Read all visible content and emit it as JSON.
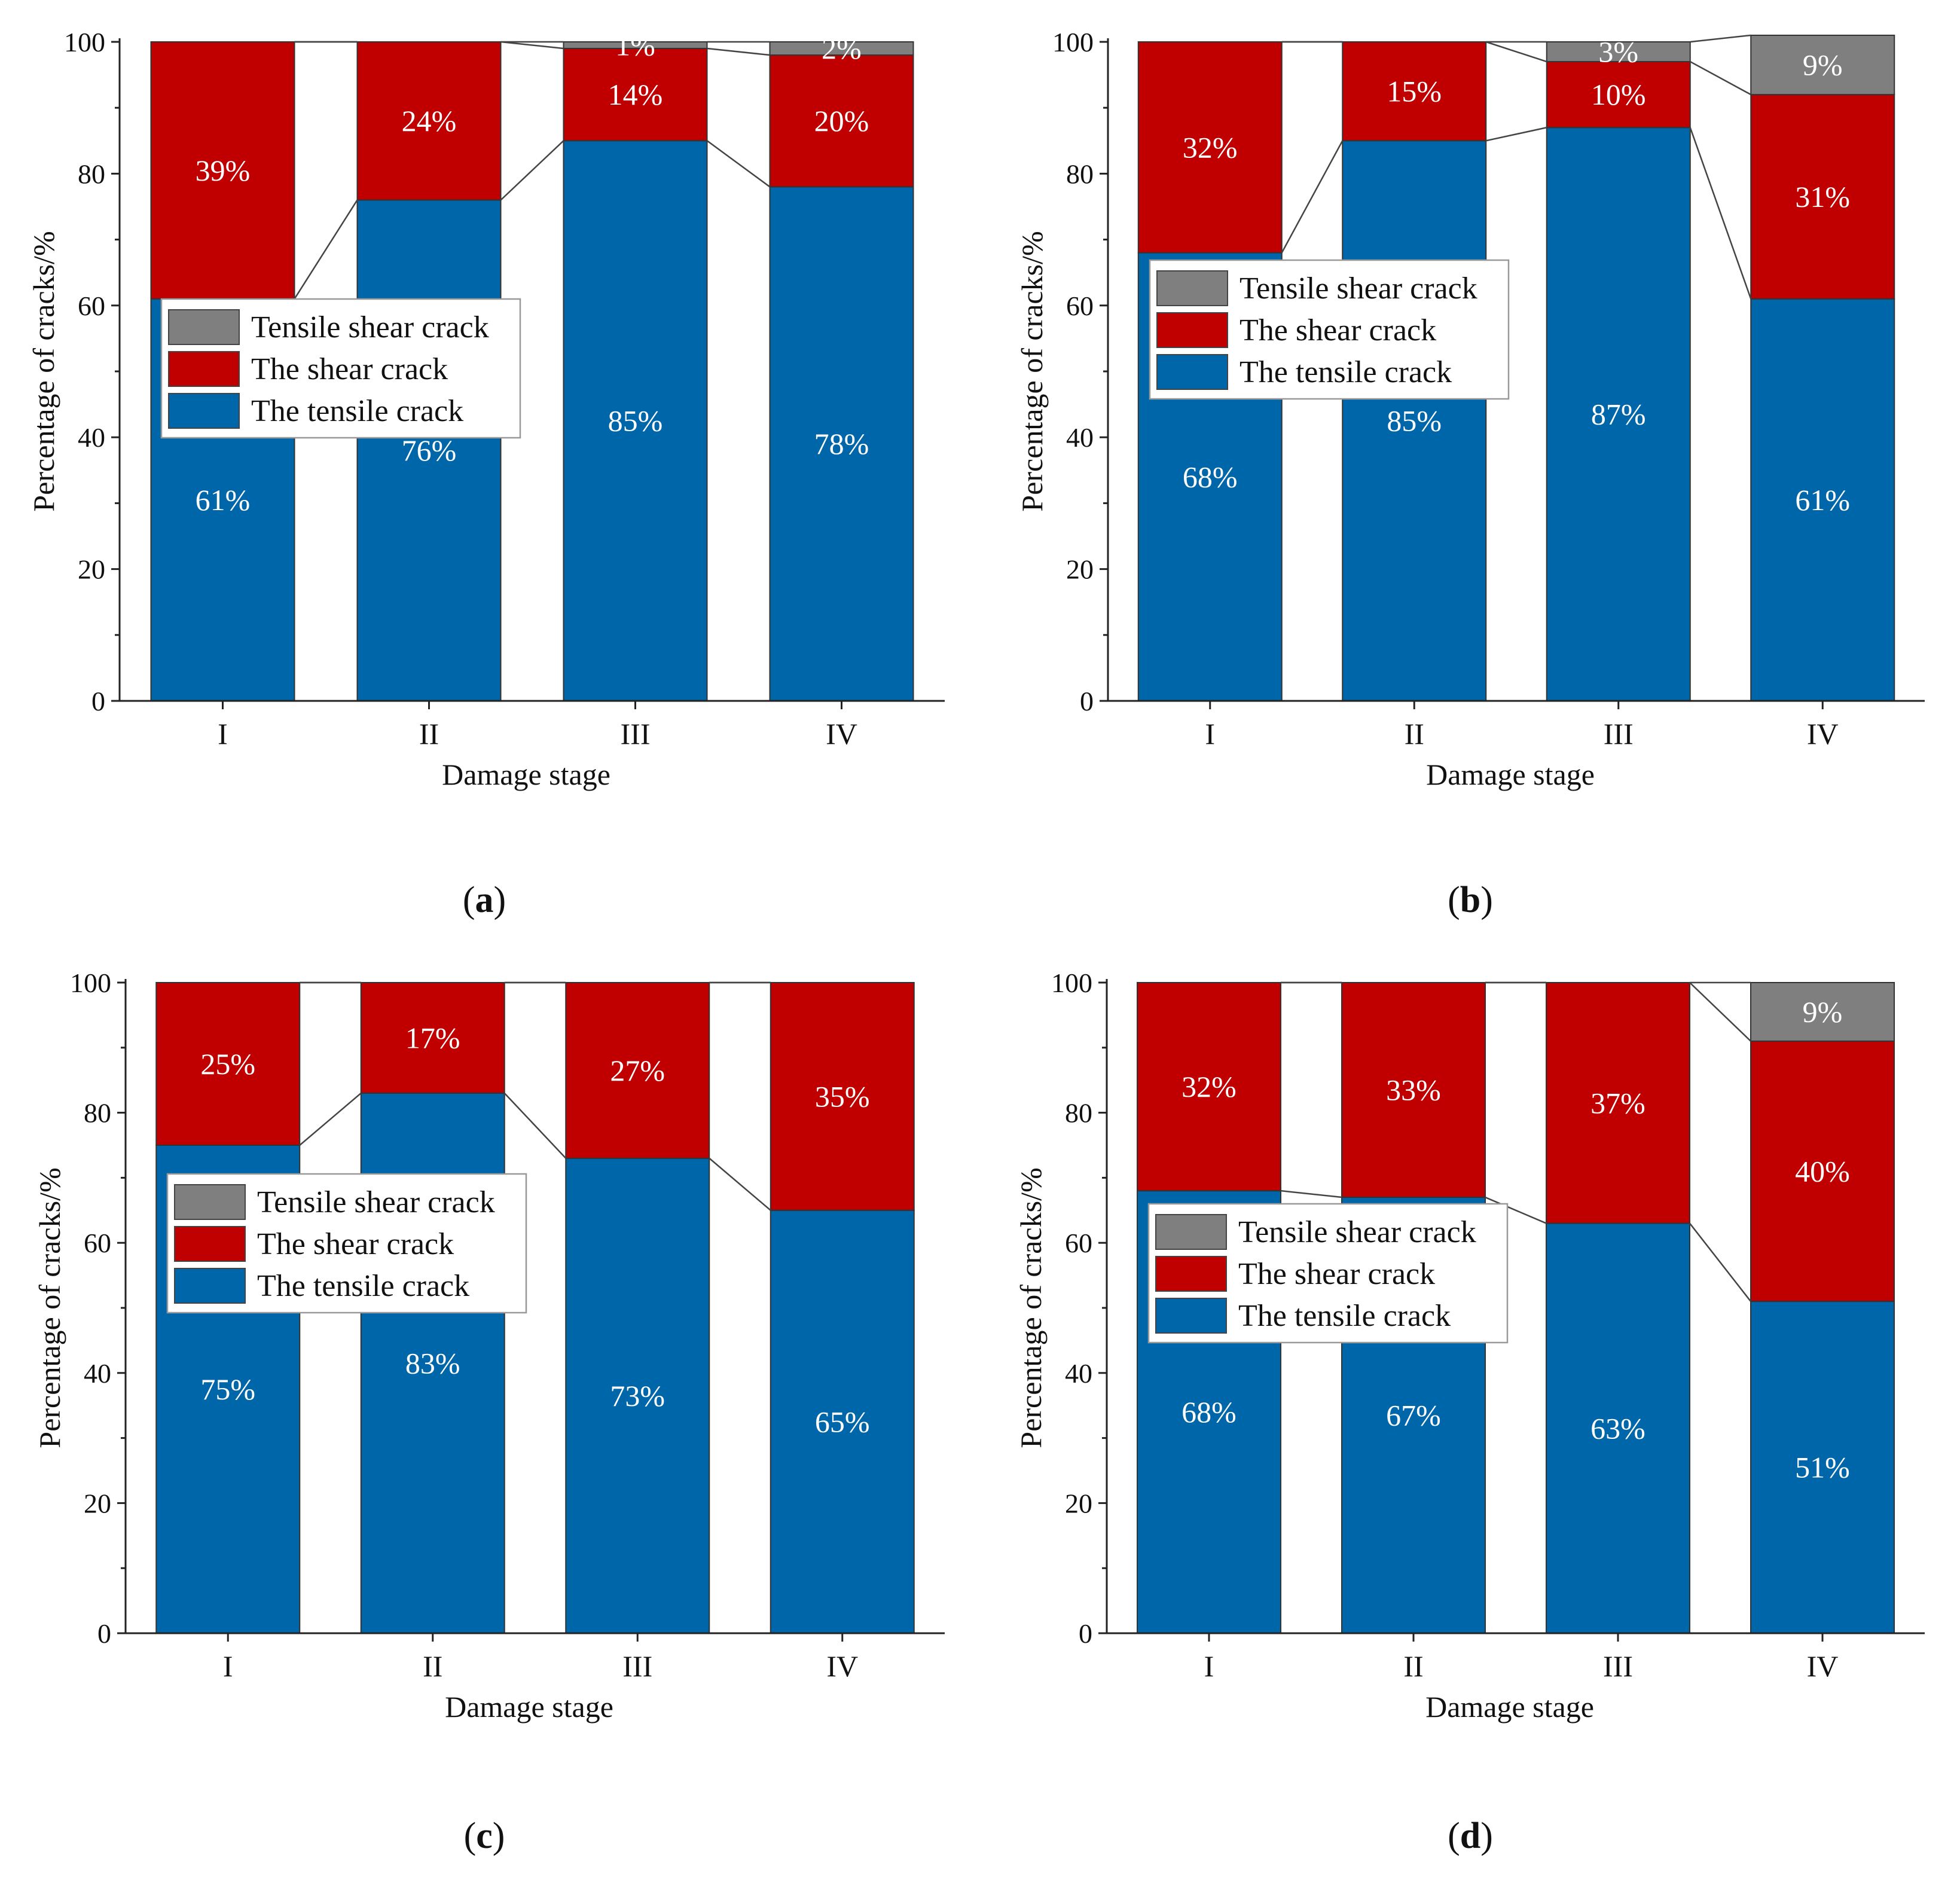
{
  "legend": {
    "entries": [
      "Tensile shear crack",
      "The shear crack",
      "The tensile crack"
    ],
    "colors": [
      "#7f7f7f",
      "#c00000",
      "#0066aa"
    ]
  },
  "chart_data": [
    {
      "type": "bar",
      "stacked": true,
      "panel": "a",
      "xlabel": "Damage stage",
      "ylabel": "Percentage of cracks/%",
      "ylim": [
        0,
        100
      ],
      "yticks": [
        0,
        20,
        40,
        60,
        80,
        100
      ],
      "categories": [
        "I",
        "II",
        "III",
        "IV"
      ],
      "series": [
        {
          "name": "The tensile crack",
          "color": "#0066aa",
          "values": [
            61,
            76,
            85,
            78
          ],
          "labels": [
            "61%",
            "76%",
            "85%",
            "78%"
          ]
        },
        {
          "name": "The shear crack",
          "color": "#c00000",
          "values": [
            39,
            24,
            14,
            20
          ],
          "labels": [
            "39%",
            "24%",
            "14%",
            "20%"
          ]
        },
        {
          "name": "Tensile shear crack",
          "color": "#7f7f7f",
          "values": [
            0,
            0,
            1,
            2
          ],
          "labels": [
            "",
            "",
            "1%",
            "2%"
          ]
        }
      ],
      "legend_position": "center-left"
    },
    {
      "type": "bar",
      "stacked": true,
      "panel": "b",
      "xlabel": "Damage stage",
      "ylabel": "Percentage of cracks/%",
      "ylim": [
        0,
        100
      ],
      "yticks": [
        0,
        20,
        40,
        60,
        80,
        100
      ],
      "categories": [
        "I",
        "II",
        "III",
        "IV"
      ],
      "series": [
        {
          "name": "The tensile crack",
          "color": "#0066aa",
          "values": [
            68,
            85,
            87,
            61
          ],
          "labels": [
            "68%",
            "85%",
            "87%",
            "61%"
          ]
        },
        {
          "name": "The shear crack",
          "color": "#c00000",
          "values": [
            32,
            15,
            10,
            31
          ],
          "labels": [
            "32%",
            "15%",
            "10%",
            "31%"
          ]
        },
        {
          "name": "Tensile shear crack",
          "color": "#7f7f7f",
          "values": [
            0,
            0,
            3,
            9
          ],
          "labels": [
            "",
            "",
            "3%",
            "9%"
          ]
        }
      ],
      "legend_position": "center-left"
    },
    {
      "type": "bar",
      "stacked": true,
      "panel": "c",
      "xlabel": "Damage stage",
      "ylabel": "Percentage of cracks/%",
      "ylim": [
        0,
        100
      ],
      "yticks": [
        0,
        20,
        40,
        60,
        80,
        100
      ],
      "categories": [
        "I",
        "II",
        "III",
        "IV"
      ],
      "series": [
        {
          "name": "The tensile crack",
          "color": "#0066aa",
          "values": [
            75,
            83,
            73,
            65
          ],
          "labels": [
            "75%",
            "83%",
            "73%",
            "65%"
          ]
        },
        {
          "name": "The shear crack",
          "color": "#c00000",
          "values": [
            25,
            17,
            27,
            35
          ],
          "labels": [
            "25%",
            "17%",
            "27%",
            "35%"
          ]
        },
        {
          "name": "Tensile shear crack",
          "color": "#7f7f7f",
          "values": [
            0,
            0,
            0,
            0
          ],
          "labels": [
            "",
            "",
            "",
            ""
          ]
        }
      ],
      "legend_position": "center-left"
    },
    {
      "type": "bar",
      "stacked": true,
      "panel": "d",
      "xlabel": "Damage stage",
      "ylabel": "Percentage of cracks/%",
      "ylim": [
        0,
        100
      ],
      "yticks": [
        0,
        20,
        40,
        60,
        80,
        100
      ],
      "categories": [
        "I",
        "II",
        "III",
        "IV"
      ],
      "series": [
        {
          "name": "The tensile crack",
          "color": "#0066aa",
          "values": [
            68,
            67,
            63,
            51
          ],
          "labels": [
            "68%",
            "67%",
            "63%",
            "51%"
          ]
        },
        {
          "name": "The shear crack",
          "color": "#c00000",
          "values": [
            32,
            33,
            37,
            40
          ],
          "labels": [
            "32%",
            "33%",
            "37%",
            "40%"
          ]
        },
        {
          "name": "Tensile shear crack",
          "color": "#7f7f7f",
          "values": [
            0,
            0,
            0,
            9
          ],
          "labels": [
            "",
            "",
            "",
            "9%"
          ]
        }
      ],
      "legend_position": "center-left"
    }
  ],
  "captions": [
    "a",
    "b",
    "c",
    "d"
  ]
}
